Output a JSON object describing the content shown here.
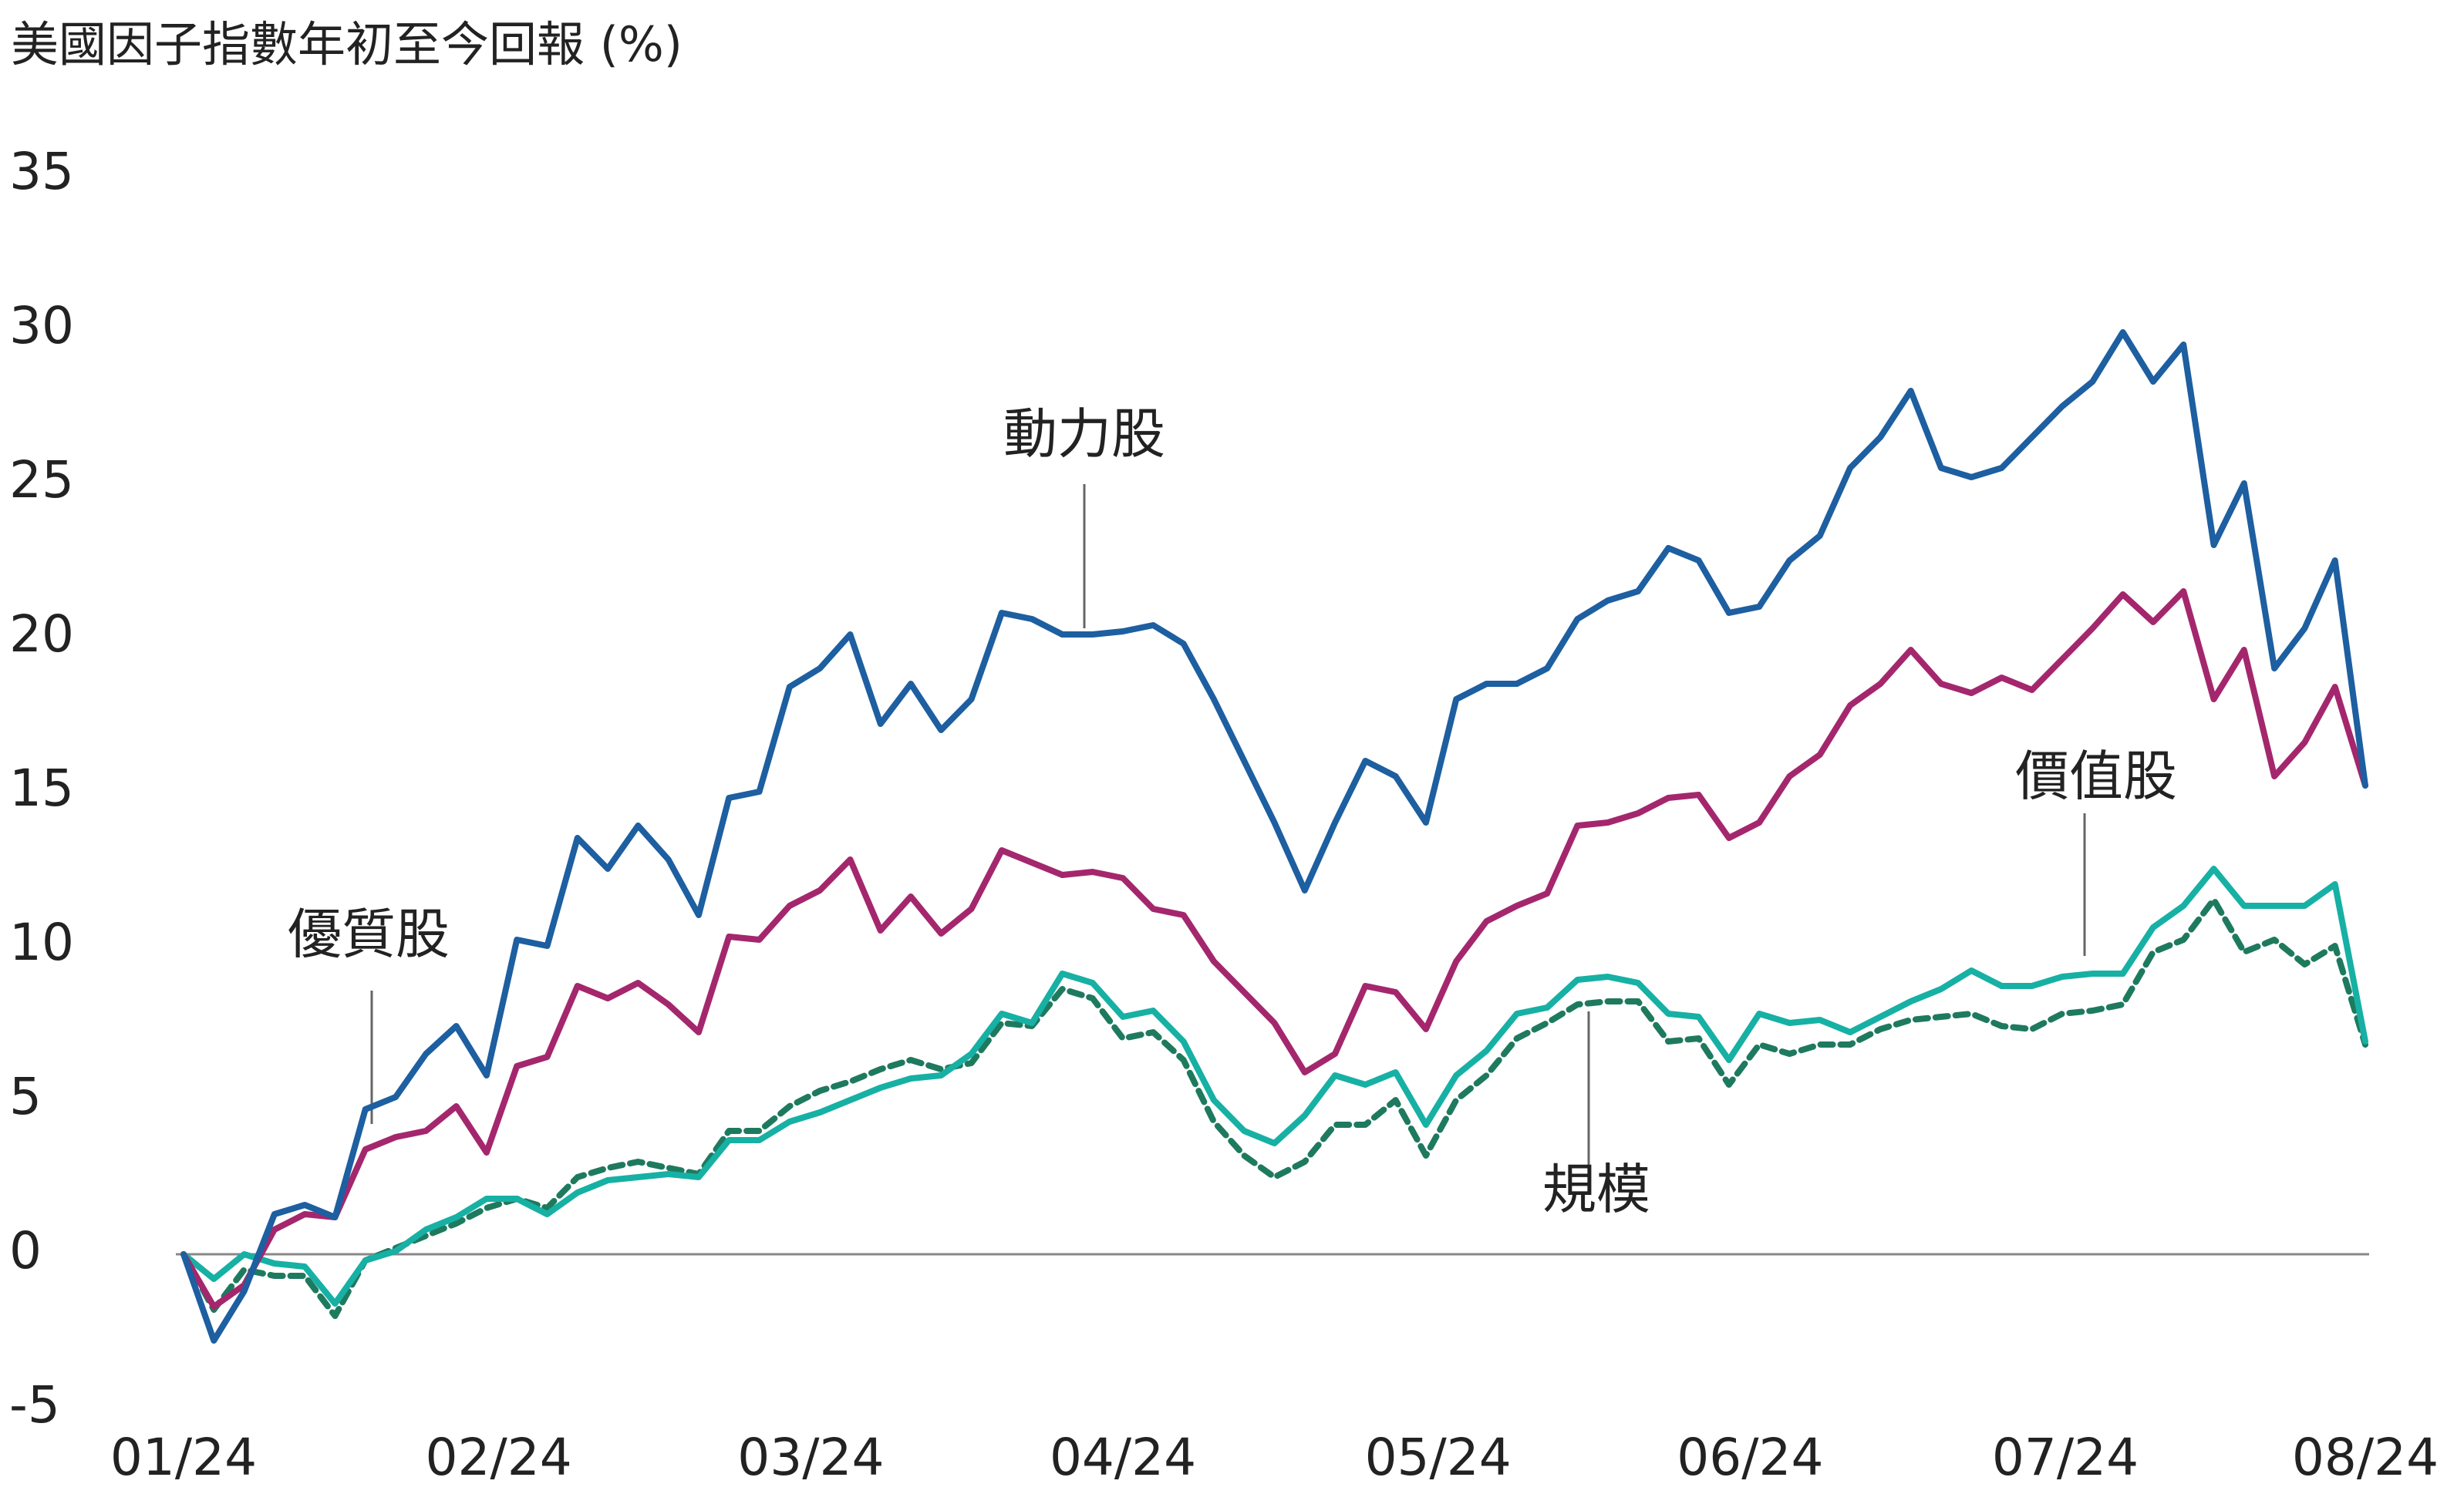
{
  "chart_data": {
    "type": "line",
    "title": "美國因子指數年初至今回報 (%)",
    "x": [
      0,
      1,
      2,
      3,
      4,
      5,
      6,
      7,
      8,
      9,
      10,
      11,
      12,
      13,
      14,
      15,
      16,
      17,
      18,
      19,
      20,
      21,
      22,
      23,
      24,
      25,
      26,
      27,
      28,
      29,
      30,
      31,
      32,
      33,
      34,
      35,
      36,
      37,
      38,
      39,
      40,
      41,
      42,
      43,
      44,
      45,
      46,
      47,
      48,
      49,
      50,
      51,
      52,
      53,
      54,
      55,
      56,
      57,
      58,
      59,
      60,
      61,
      62,
      63,
      64,
      65,
      66,
      67,
      68,
      69,
      70,
      71,
      72
    ],
    "xlim": [
      0,
      72
    ],
    "xticks": [
      {
        "value": 0,
        "label": "01/24"
      },
      {
        "value": 10.4,
        "label": "02/24"
      },
      {
        "value": 20.7,
        "label": "03/24"
      },
      {
        "value": 31,
        "label": "04/24"
      },
      {
        "value": 41.4,
        "label": "05/24"
      },
      {
        "value": 51.7,
        "label": "06/24"
      },
      {
        "value": 62.1,
        "label": "07/24"
      },
      {
        "value": 72,
        "label": "08/24"
      }
    ],
    "ylim": [
      -5,
      35
    ],
    "yticks": [
      -5,
      0,
      5,
      10,
      15,
      20,
      25,
      30,
      35
    ],
    "zero_line": true,
    "series": [
      {
        "name": "動力股",
        "color": "#1d5fa0",
        "dashed": false,
        "values": [
          0,
          -2.8,
          -1.2,
          1.3,
          1.6,
          1.2,
          4.7,
          5.1,
          6.5,
          7.4,
          5.8,
          10.2,
          10.0,
          13.5,
          12.5,
          13.9,
          12.8,
          11.0,
          14.8,
          15.0,
          18.4,
          19.0,
          20.1,
          17.2,
          18.5,
          17.0,
          18.0,
          20.8,
          20.6,
          20.1,
          20.1,
          20.2,
          20.4,
          19.8,
          18.0,
          16.0,
          14.0,
          11.8,
          14.0,
          16.0,
          15.5,
          14.0,
          18.0,
          18.5,
          18.5,
          19.0,
          20.6,
          21.2,
          21.5,
          22.9,
          22.5,
          20.8,
          21.0,
          22.5,
          23.3,
          25.5,
          26.5,
          28.0,
          25.5,
          25.2,
          25.5,
          26.5,
          27.5,
          28.3,
          29.9,
          28.3,
          29.5,
          23.0,
          25.0,
          19.0,
          20.3,
          22.5,
          15.2
        ]
      },
      {
        "name": "優質股",
        "color": "#a4276d",
        "dashed": false,
        "values": [
          0,
          -1.7,
          -1.0,
          0.8,
          1.3,
          1.2,
          3.4,
          3.8,
          4.0,
          4.8,
          3.3,
          6.1,
          6.4,
          8.7,
          8.3,
          8.8,
          8.1,
          7.2,
          10.3,
          10.2,
          11.3,
          11.8,
          12.8,
          10.5,
          11.6,
          10.4,
          11.2,
          13.1,
          12.7,
          12.3,
          12.4,
          12.2,
          11.2,
          11.0,
          9.5,
          8.5,
          7.5,
          5.9,
          6.5,
          8.7,
          8.5,
          7.3,
          9.5,
          10.8,
          11.3,
          11.7,
          13.9,
          14.0,
          14.3,
          14.8,
          14.9,
          13.5,
          14.0,
          15.5,
          16.2,
          17.8,
          18.5,
          19.6,
          18.5,
          18.2,
          18.7,
          18.3,
          19.3,
          20.3,
          21.4,
          20.5,
          21.5,
          18.0,
          19.6,
          15.5,
          16.6,
          18.4,
          15.2
        ]
      },
      {
        "name": "價值股",
        "color": "#17b0a4",
        "dashed": false,
        "values": [
          0,
          -0.8,
          0.0,
          -0.3,
          -0.4,
          -1.6,
          -0.2,
          0.1,
          0.8,
          1.2,
          1.8,
          1.8,
          1.3,
          2.0,
          2.4,
          2.5,
          2.6,
          2.5,
          3.7,
          3.7,
          4.3,
          4.6,
          5.0,
          5.4,
          5.7,
          5.8,
          6.5,
          7.8,
          7.5,
          9.1,
          8.8,
          7.7,
          7.9,
          6.9,
          5.0,
          4.0,
          3.6,
          4.5,
          5.8,
          5.5,
          5.9,
          4.2,
          5.8,
          6.6,
          7.8,
          8.0,
          8.9,
          9.0,
          8.8,
          7.8,
          7.7,
          6.3,
          7.8,
          7.5,
          7.6,
          7.2,
          7.7,
          8.2,
          8.6,
          9.2,
          8.7,
          8.7,
          9.0,
          9.1,
          9.1,
          10.6,
          11.3,
          12.5,
          11.3,
          11.3,
          11.3,
          12.0,
          6.9
        ]
      },
      {
        "name": "規模",
        "color": "#1e7a5e",
        "dashed": true,
        "values": [
          0,
          -1.8,
          -0.5,
          -0.7,
          -0.7,
          -2.0,
          -0.2,
          0.2,
          0.6,
          1.0,
          1.5,
          1.8,
          1.5,
          2.5,
          2.8,
          3.0,
          2.8,
          2.6,
          4.0,
          4.0,
          4.8,
          5.3,
          5.6,
          6.0,
          6.3,
          6.0,
          6.2,
          7.5,
          7.4,
          8.6,
          8.3,
          7.0,
          7.2,
          6.3,
          4.3,
          3.2,
          2.5,
          3.0,
          4.2,
          4.2,
          5.0,
          3.2,
          5.0,
          5.8,
          7.0,
          7.5,
          8.1,
          8.2,
          8.2,
          6.9,
          7.0,
          5.5,
          6.8,
          6.5,
          6.8,
          6.8,
          7.3,
          7.6,
          7.7,
          7.8,
          7.4,
          7.3,
          7.8,
          7.9,
          8.1,
          9.8,
          10.2,
          11.5,
          9.8,
          10.2,
          9.4,
          10.0,
          6.8
        ]
      }
    ]
  }
}
